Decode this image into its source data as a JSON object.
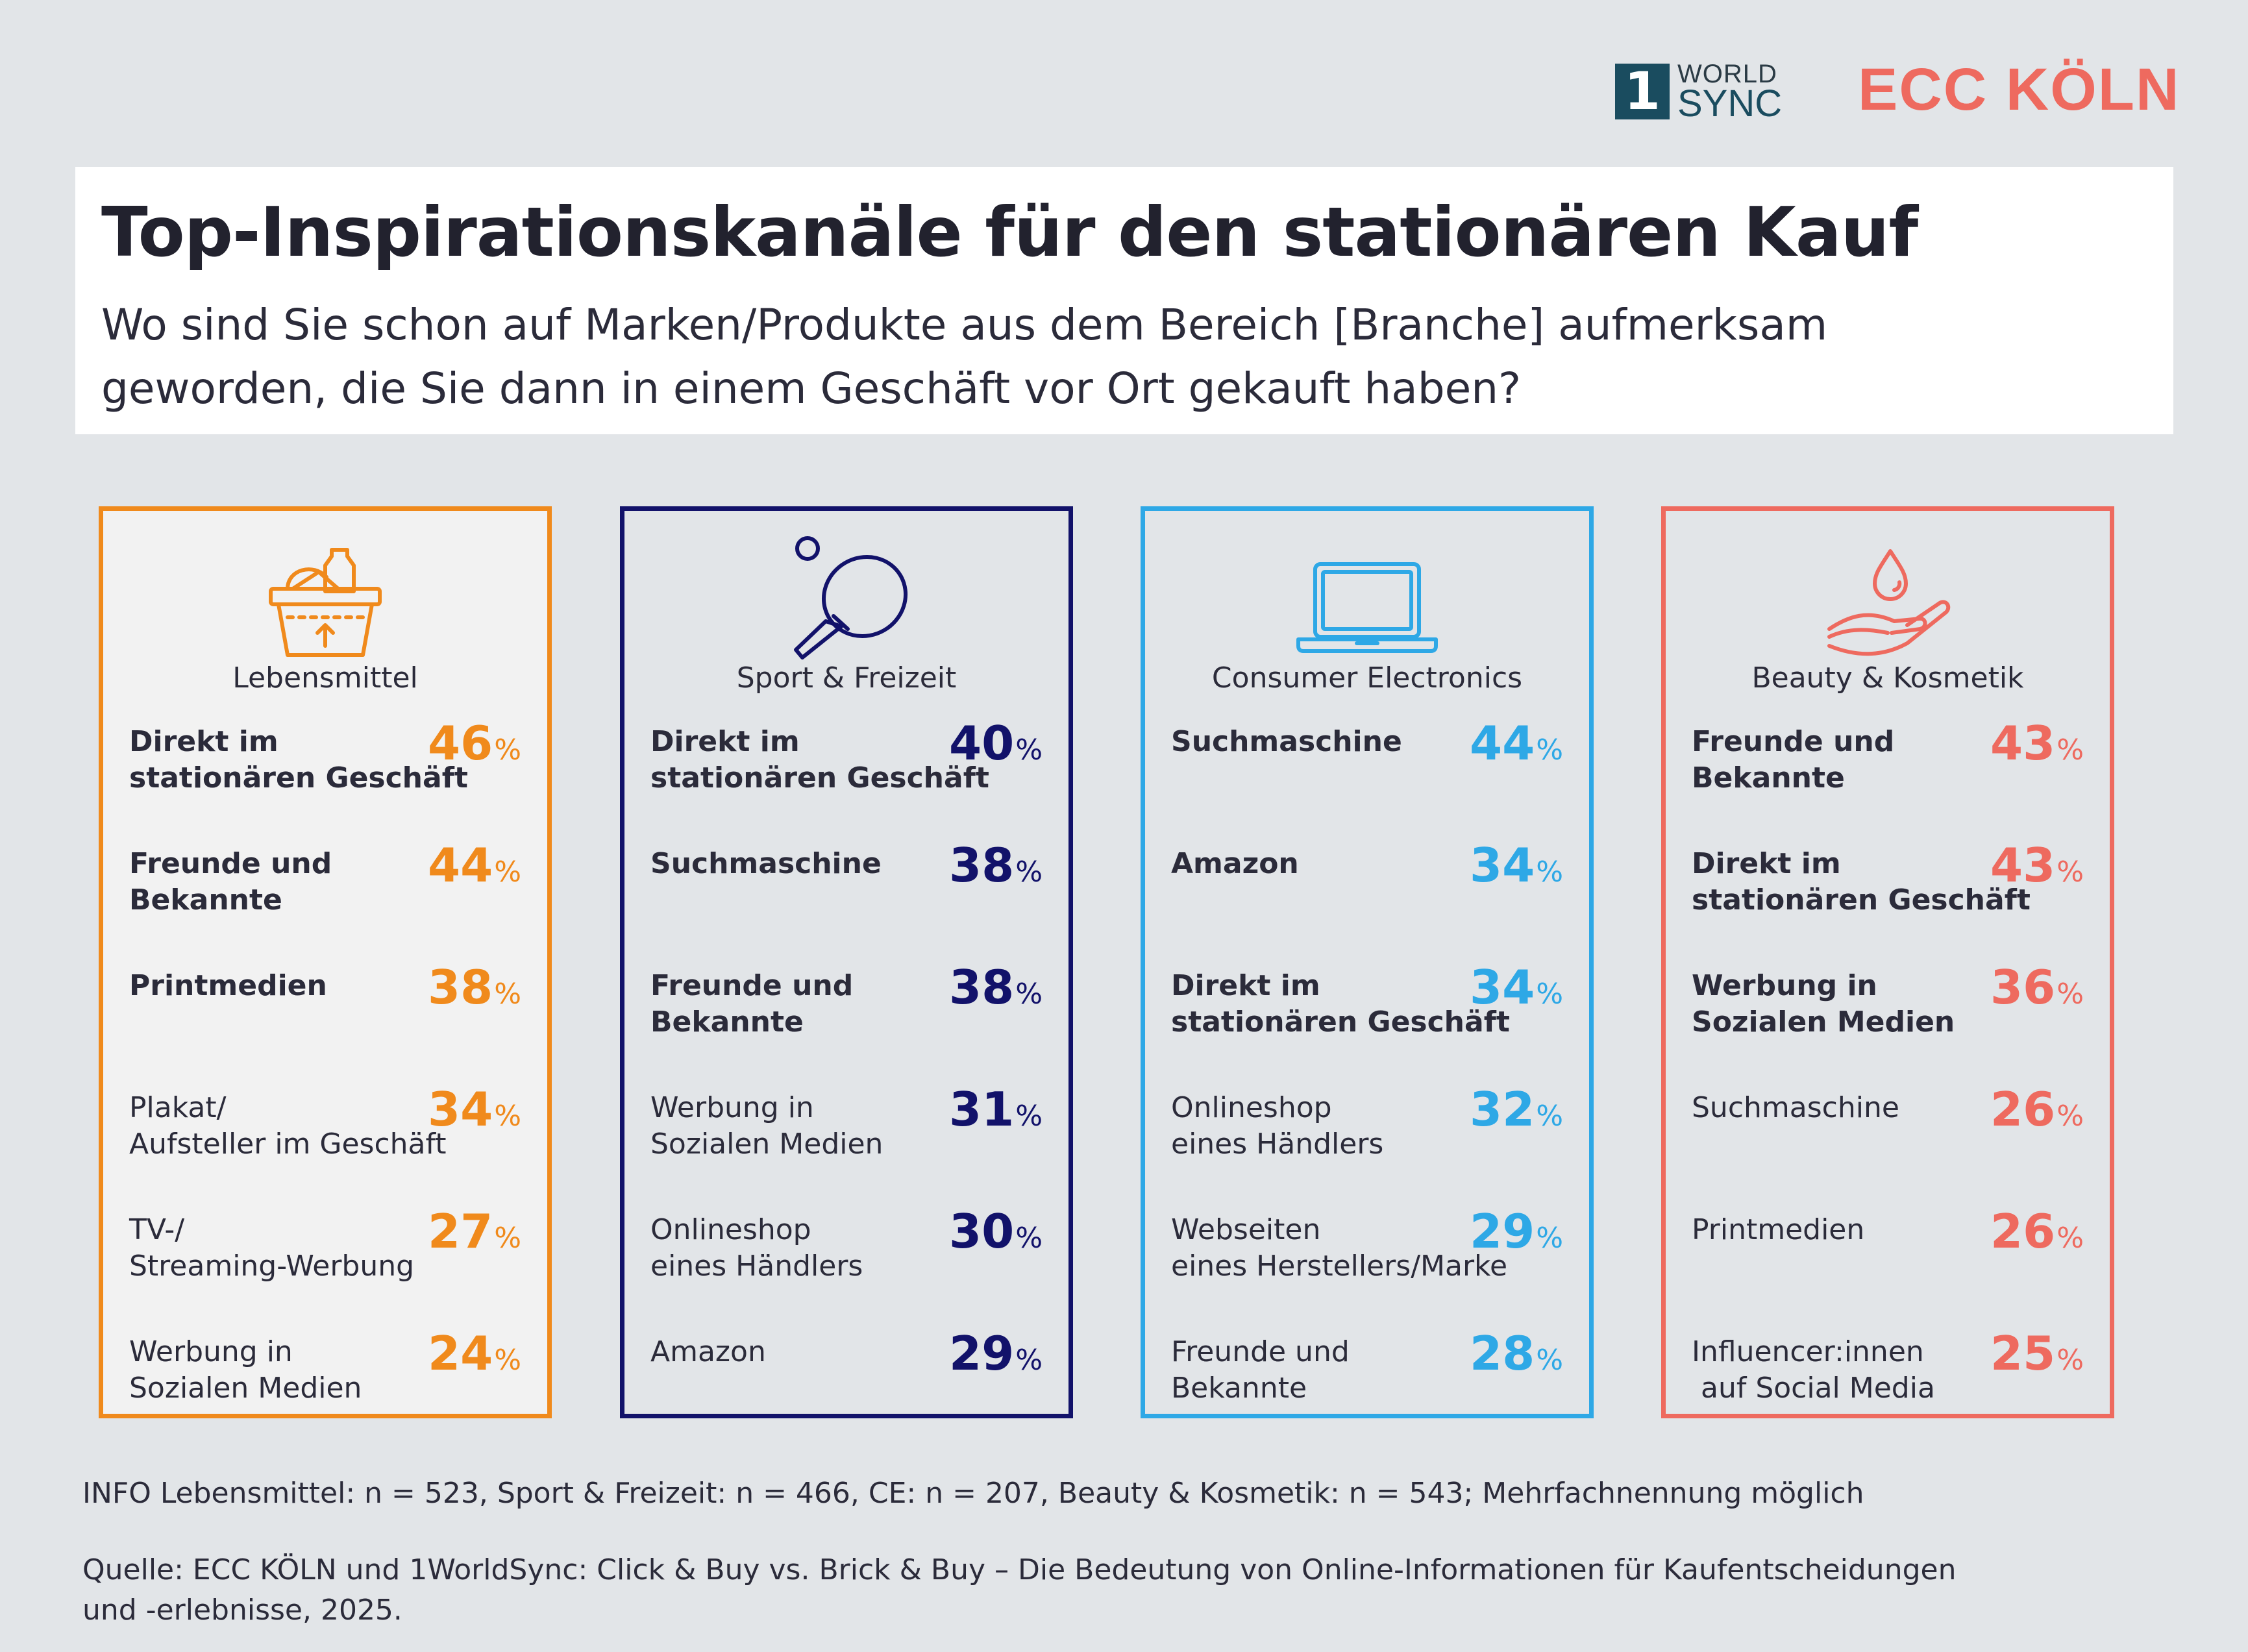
{
  "logos": {
    "worldsync_mark": "1",
    "worldsync_line1": "WORLD",
    "worldsync_line2": "SYNC",
    "ecc": "ECC KÖLN",
    "ecc_color": "#ee6a5f",
    "worldsync_color": "#1a4c5f"
  },
  "header": {
    "title": "Top-Inspirationskanäle für den stationären Kauf",
    "subtitle_line1": "Wo sind Sie schon auf Marken/Produkte aus dem Bereich [Branche] aufmerksam",
    "subtitle_line2": "geworden, die Sie dann in einem Geschäft vor Ort gekauft haben?"
  },
  "categories": [
    {
      "name": "Lebensmittel",
      "icon": "grocery-basket-icon",
      "color": "#f08a1c",
      "background": "#f2f2f2",
      "items": [
        {
          "lines": [
            "Direkt im",
            "stationären Geschäft"
          ],
          "value": 46,
          "bold": true
        },
        {
          "lines": [
            "Freunde und",
            "Bekannte"
          ],
          "value": 44,
          "bold": true
        },
        {
          "lines": [
            "Printmedien"
          ],
          "value": 38,
          "bold": true
        },
        {
          "lines": [
            "Plakat/",
            "Aufsteller im Geschäft"
          ],
          "value": 34,
          "bold": false
        },
        {
          "lines": [
            "TV-/",
            "Streaming-Werbung"
          ],
          "value": 27,
          "bold": false
        },
        {
          "lines": [
            "Werbung in",
            "Sozialen Medien"
          ],
          "value": 24,
          "bold": false
        }
      ]
    },
    {
      "name": "Sport & Freizeit",
      "icon": "table-tennis-icon",
      "color": "#12126a",
      "background": "#e2e5e8",
      "items": [
        {
          "lines": [
            "Direkt im",
            "stationären Geschäft"
          ],
          "value": 40,
          "bold": true
        },
        {
          "lines": [
            "Suchmaschine"
          ],
          "value": 38,
          "bold": true
        },
        {
          "lines": [
            "Freunde und",
            "Bekannte"
          ],
          "value": 38,
          "bold": true
        },
        {
          "lines": [
            "Werbung in",
            "Sozialen Medien"
          ],
          "value": 31,
          "bold": false
        },
        {
          "lines": [
            "Onlineshop",
            "eines Händlers"
          ],
          "value": 30,
          "bold": false
        },
        {
          "lines": [
            "Amazon"
          ],
          "value": 29,
          "bold": false
        }
      ]
    },
    {
      "name": "Consumer Electronics",
      "icon": "laptop-icon",
      "color": "#2ea8e6",
      "background": "#e2e5e8",
      "items": [
        {
          "lines": [
            "Suchmaschine"
          ],
          "value": 44,
          "bold": true
        },
        {
          "lines": [
            "Amazon"
          ],
          "value": 34,
          "bold": true
        },
        {
          "lines": [
            "Direkt im",
            "stationären Geschäft"
          ],
          "value": 34,
          "bold": true
        },
        {
          "lines": [
            "Onlineshop",
            "eines Händlers"
          ],
          "value": 32,
          "bold": false
        },
        {
          "lines": [
            "Webseiten",
            "eines Herstellers/Marke"
          ],
          "value": 29,
          "bold": false
        },
        {
          "lines": [
            "Freunde und",
            "Bekannte"
          ],
          "value": 28,
          "bold": false
        }
      ]
    },
    {
      "name": "Beauty & Kosmetik",
      "icon": "hand-drop-icon",
      "color": "#ee6a5f",
      "background": "#e2e5e8",
      "items": [
        {
          "lines": [
            "Freunde und",
            "Bekannte"
          ],
          "value": 43,
          "bold": true
        },
        {
          "lines": [
            "Direkt im",
            "stationären Geschäft"
          ],
          "value": 43,
          "bold": true
        },
        {
          "lines": [
            "Werbung in",
            "Sozialen Medien"
          ],
          "value": 36,
          "bold": true
        },
        {
          "lines": [
            "Suchmaschine"
          ],
          "value": 26,
          "bold": false
        },
        {
          "lines": [
            "Printmedien"
          ],
          "value": 26,
          "bold": false
        },
        {
          "lines": [
            "Influencer:innen",
            " auf Social Media"
          ],
          "value": 25,
          "bold": false
        }
      ]
    }
  ],
  "percent_sign": "%",
  "footer": {
    "info": "INFO  Lebensmittel: n = 523, Sport & Freizeit: n = 466, CE: n = 207, Beauty & Kosmetik: n = 543; Mehrfachnennung möglich",
    "source_line1": "Quelle: ECC KÖLN und 1WorldSync: Click & Buy vs. Brick & Buy – Die Bedeutung von Online-Informationen für Kaufentscheidungen",
    "source_line2": "und -erlebnisse, 2025."
  }
}
